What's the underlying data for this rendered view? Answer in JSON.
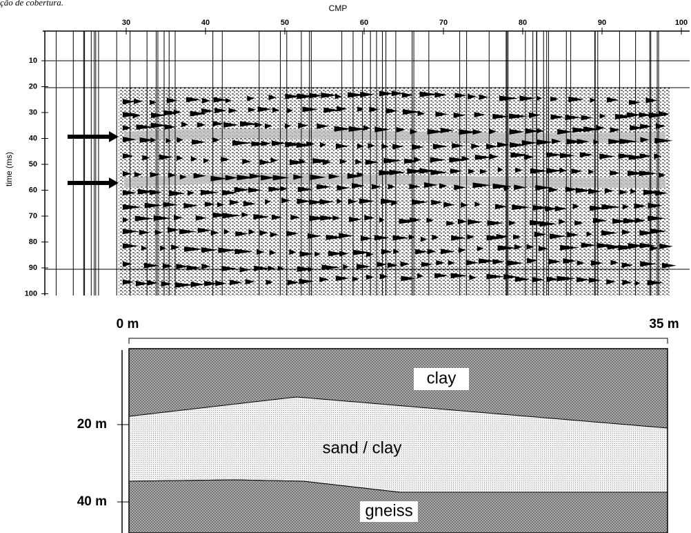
{
  "caption_fragment": "ção de cobertura.",
  "seismic_section": {
    "x_label": "CMP",
    "x_ticks": [
      30,
      40,
      50,
      60,
      70,
      80,
      90,
      100
    ],
    "y_label": "time (ms)",
    "y_ticks": [
      10,
      20,
      30,
      40,
      50,
      60,
      70,
      80,
      90,
      100
    ]
  },
  "model": {
    "distance_start": "0 m",
    "distance_end": "35 m",
    "depth_labels": [
      "20 m",
      "40 m"
    ],
    "layers": [
      "clay",
      "sand / clay",
      "gneiss"
    ]
  }
}
